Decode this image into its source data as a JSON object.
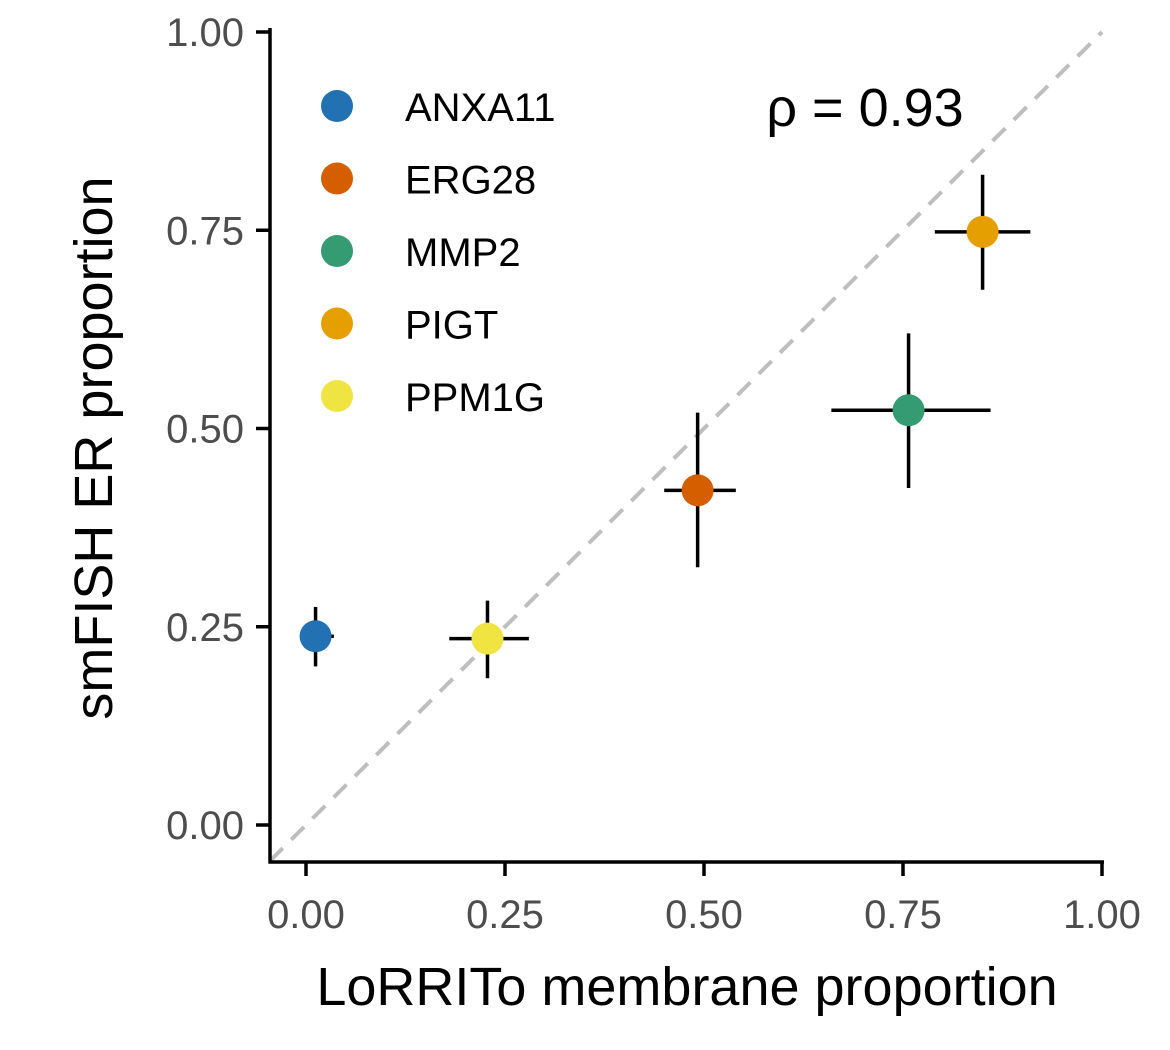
{
  "chart_data": {
    "type": "scatter",
    "xlabel": "LoRRITo membrane proportion",
    "ylabel": "smFISH ER proportion",
    "xlim": [
      0,
      1
    ],
    "ylim": [
      0,
      1
    ],
    "x_ticks": [
      "0.00",
      "0.25",
      "0.50",
      "0.75",
      "1.00"
    ],
    "y_ticks": [
      "0.00",
      "0.25",
      "0.50",
      "0.75",
      "1.00"
    ],
    "grid": false,
    "legend_position": "top-left",
    "reference_line": {
      "type": "identity",
      "style": "dashed",
      "color": "#bebebe"
    },
    "annotation": "ρ = 0.93",
    "series": [
      {
        "name": "ANXA11",
        "color": "#2271b2",
        "x": 0.012,
        "y": 0.238,
        "xerr": [
          0.0,
          0.035
        ],
        "yerr": [
          0.2,
          0.275
        ]
      },
      {
        "name": "ERG28",
        "color": "#d55e00",
        "x": 0.492,
        "y": 0.422,
        "xerr": [
          0.45,
          0.54
        ],
        "yerr": [
          0.325,
          0.52
        ]
      },
      {
        "name": "MMP2",
        "color": "#359b73",
        "x": 0.757,
        "y": 0.523,
        "xerr": [
          0.66,
          0.86
        ],
        "yerr": [
          0.425,
          0.62
        ]
      },
      {
        "name": "PIGT",
        "color": "#e69f00",
        "x": 0.85,
        "y": 0.748,
        "xerr": [
          0.79,
          0.91
        ],
        "yerr": [
          0.675,
          0.82
        ]
      },
      {
        "name": "PPM1G",
        "color": "#f0e442",
        "x": 0.228,
        "y": 0.235,
        "xerr": [
          0.18,
          0.28
        ],
        "yerr": [
          0.185,
          0.283
        ]
      }
    ]
  }
}
